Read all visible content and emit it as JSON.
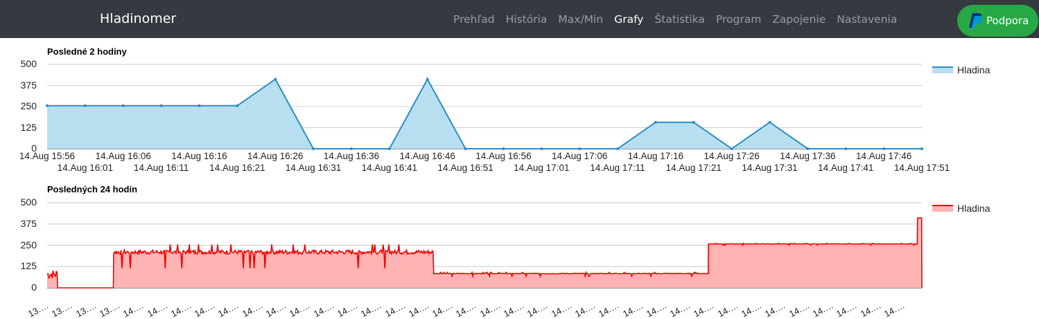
{
  "app": {
    "brand": "Hladinomer"
  },
  "nav": {
    "items": [
      "Prehľad",
      "História",
      "Max/Min",
      "Grafy",
      "Štatistika",
      "Program",
      "Zapojenie",
      "Nastavenia"
    ],
    "active": "Grafy"
  },
  "support": {
    "label": "Podpora",
    "icon": "paypal-icon"
  },
  "chart_data": [
    {
      "type": "area",
      "title": "Posledné 2 hodiny",
      "legend": "Hladina",
      "legend_position": "right",
      "color": "#2a8dc5",
      "fill": "#b8dff0",
      "ylim": [
        0,
        500
      ],
      "yticks": [
        "0",
        "125",
        "250",
        "375",
        "500"
      ],
      "grid": true,
      "x": [
        "14.Aug 15:56",
        "14.Aug 16:01",
        "14.Aug 16:06",
        "14.Aug 16:11",
        "14.Aug 16:16",
        "14.Aug 16:21",
        "14.Aug 16:26",
        "14.Aug 16:31",
        "14.Aug 16:36",
        "14.Aug 16:41",
        "14.Aug 16:46",
        "14.Aug 16:51",
        "14.Aug 16:56",
        "14.Aug 17:01",
        "14.Aug 17:06",
        "14.Aug 17:11",
        "14.Aug 17:16",
        "14.Aug 17:21",
        "14.Aug 17:26",
        "14.Aug 17:31",
        "14.Aug 17:36",
        "14.Aug 17:41",
        "14.Aug 17:46",
        "14.Aug 17:51"
      ],
      "values": [
        255,
        255,
        255,
        255,
        255,
        255,
        412,
        0,
        0,
        0,
        412,
        0,
        0,
        0,
        0,
        0,
        157,
        157,
        0,
        157,
        0,
        0,
        0,
        0
      ]
    },
    {
      "type": "area",
      "title": "Posledných 24 hodín",
      "legend": "Hladina",
      "legend_position": "right",
      "color": "#f00000",
      "fill": "#ffb3b3",
      "ylim": [
        0,
        500
      ],
      "yticks": [
        "0",
        "125",
        "250",
        "375",
        "500"
      ],
      "grid": true,
      "x_tick_labels": [
        "13.",
        "13.",
        "13.",
        "13.",
        "14.",
        "14.",
        "14.",
        "14.",
        "14.",
        "14.",
        "14.",
        "14.",
        "14.",
        "14.",
        "14.",
        "14.",
        "14.",
        "14.",
        "14.",
        "14.",
        "14.",
        "14.",
        "14.",
        "14.",
        "14.",
        "14.",
        "14.",
        "14.",
        "14.",
        "14.",
        "14.",
        "14.",
        "14.",
        "14.",
        "14.",
        "14.",
        "14."
      ],
      "segments": [
        {
          "from": 0.0,
          "to": 0.012,
          "level": 80,
          "noise": 110
        },
        {
          "from": 0.012,
          "to": 0.076,
          "level": 0,
          "noise": 0
        },
        {
          "from": 0.076,
          "to": 0.442,
          "level": 210,
          "noise": 50
        },
        {
          "from": 0.442,
          "to": 0.756,
          "level": 84,
          "noise": 8
        },
        {
          "from": 0.756,
          "to": 0.995,
          "level": 258,
          "noise": 4
        },
        {
          "from": 0.995,
          "to": 1.0,
          "level": 410,
          "noise": 0
        }
      ]
    }
  ]
}
